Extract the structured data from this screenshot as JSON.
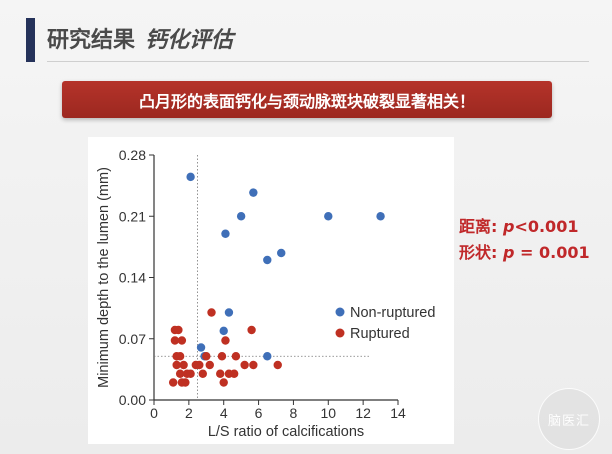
{
  "slide": {
    "title": "研究结果",
    "section": "钙化评估",
    "banner": "凸月形的表面钙化与颈动脉斑块破裂显著相关！"
  },
  "stats": {
    "distance_label": "距离: ",
    "distance_p": "p",
    "distance_value": "<0.001",
    "shape_label": "形状: ",
    "shape_p": "p",
    "shape_value": " = 0.001"
  },
  "watermark": {
    "text": "脑医汇"
  },
  "colors": {
    "non_ruptured": "#3f6fb8",
    "ruptured": "#bf3022",
    "banner": "#a92d24",
    "stats_text": "#c0282a",
    "accent_bar": "#25325a"
  },
  "chart_data": {
    "type": "scatter",
    "xlabel": "L/S ratio of calcifications",
    "ylabel": "Minimum depth to the lumen (mm)",
    "xlim": [
      0,
      14
    ],
    "ylim": [
      0,
      0.28
    ],
    "xticks": [
      0,
      2,
      4,
      6,
      8,
      10,
      12,
      14
    ],
    "yticks": [
      "0.00",
      "0.07",
      "0.14",
      "0.21",
      "0.28"
    ],
    "ytick_values": [
      0,
      0.07,
      0.14,
      0.21,
      0.28
    ],
    "legend": [
      "Non-ruptured",
      "Ruptured"
    ],
    "legend_position": "right",
    "threshold_x": 2.5,
    "threshold_y": 0.05,
    "series": [
      {
        "name": "Non-ruptured",
        "points": [
          [
            2.1,
            0.255
          ],
          [
            4.1,
            0.19
          ],
          [
            5.0,
            0.21
          ],
          [
            5.7,
            0.237
          ],
          [
            6.5,
            0.16
          ],
          [
            7.3,
            0.168
          ],
          [
            10.0,
            0.21
          ],
          [
            13.0,
            0.21
          ],
          [
            4.3,
            0.1
          ],
          [
            4.0,
            0.079
          ],
          [
            2.7,
            0.06
          ],
          [
            2.9,
            0.05
          ],
          [
            6.5,
            0.05
          ]
        ]
      },
      {
        "name": "Ruptured",
        "points": [
          [
            1.2,
            0.08
          ],
          [
            1.4,
            0.08
          ],
          [
            1.2,
            0.068
          ],
          [
            1.6,
            0.068
          ],
          [
            1.3,
            0.05
          ],
          [
            1.5,
            0.05
          ],
          [
            1.7,
            0.04
          ],
          [
            1.3,
            0.04
          ],
          [
            1.5,
            0.03
          ],
          [
            1.9,
            0.03
          ],
          [
            2.1,
            0.03
          ],
          [
            1.1,
            0.02
          ],
          [
            1.6,
            0.02
          ],
          [
            1.8,
            0.02
          ],
          [
            2.4,
            0.04
          ],
          [
            2.6,
            0.04
          ],
          [
            2.8,
            0.03
          ],
          [
            3.2,
            0.04
          ],
          [
            3.8,
            0.03
          ],
          [
            3.9,
            0.05
          ],
          [
            4.0,
            0.02
          ],
          [
            4.3,
            0.03
          ],
          [
            4.6,
            0.03
          ],
          [
            4.7,
            0.05
          ],
          [
            5.2,
            0.04
          ],
          [
            5.7,
            0.04
          ],
          [
            3.3,
            0.1
          ],
          [
            5.6,
            0.08
          ],
          [
            7.1,
            0.04
          ],
          [
            4.1,
            0.068
          ],
          [
            3.0,
            0.05
          ]
        ]
      }
    ]
  }
}
